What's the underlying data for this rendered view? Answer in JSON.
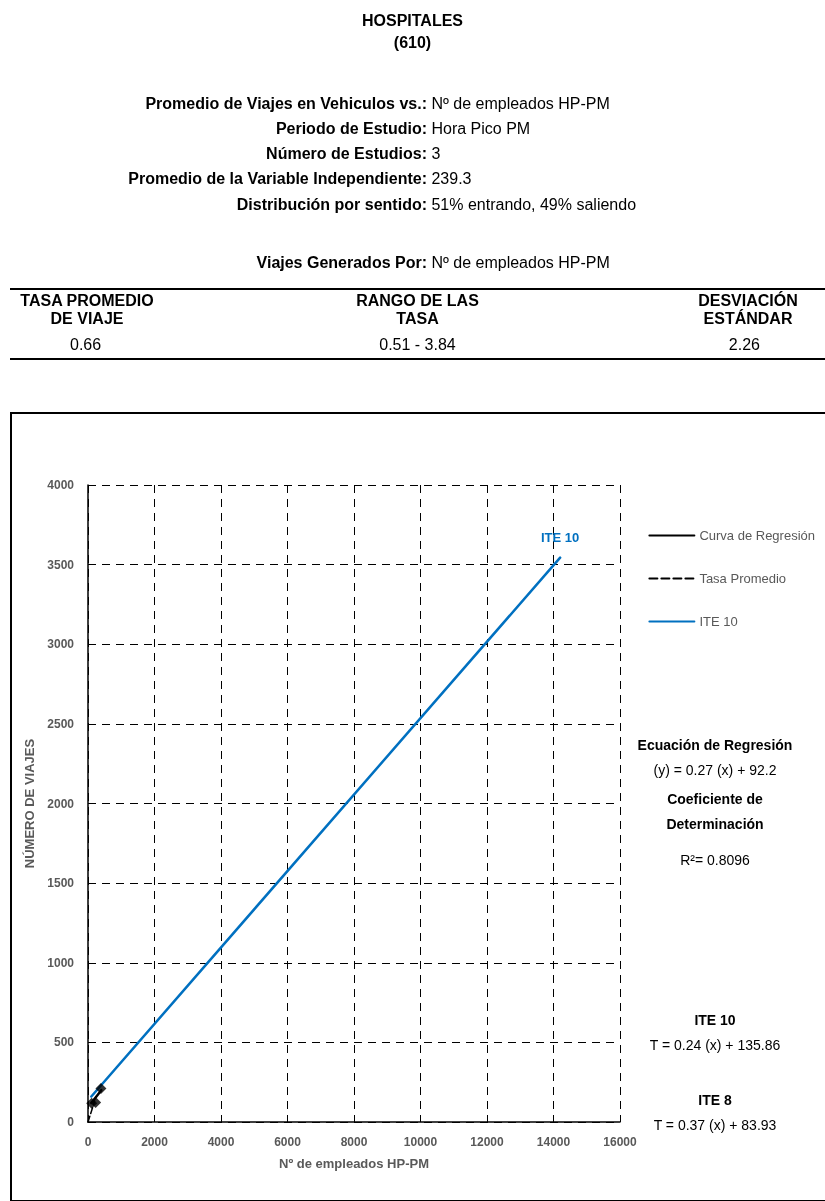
{
  "chart_data": {
    "type": "line",
    "title": "HOSPITALES",
    "subtitle": "(610)",
    "xlabel": "Nº de empleados HP-PM",
    "ylabel": "NÚMERO DE VIAJES",
    "annotations": [
      "Promedio de Viajes en Vehiculos vs.: Nº de empleados HP-PM",
      "Periodo de Estudio: Hora Pico PM",
      "Número de Estudios: 3",
      "Promedio de la Variable Independiente: 239.3",
      "Distribución por sentido: 51% entrando,  49% saliendo",
      "Viajes Generados Por: Nº de empleados HP-PM",
      "TASA PROMEDIO DE VIAJE",
      "RANGO DE LAS TASA",
      "DESVIACIÓN ESTÁNDAR",
      "0.66",
      "0.51 - 3.84",
      "2.26",
      "Ecuación de Regresión",
      "(y) = 0.27 (x) + 92.2",
      "Coeficiente de Determinación",
      "R²= 0.8096",
      "ITE 10",
      "T = 0.24 (x) + 135.86",
      "ITE 8",
      "T = 0.37 (x) + 83.93",
      "ITE 10"
    ],
    "xlim": [
      0,
      16000
    ],
    "xticks": [
      0,
      2000,
      4000,
      6000,
      8000,
      10000,
      12000,
      14000,
      16000
    ],
    "ylim": [
      0,
      4000
    ],
    "yticks": [
      0,
      500,
      1000,
      1500,
      2000,
      2500,
      3000,
      3500,
      4000
    ],
    "grid": true,
    "legend": "top right",
    "marker": "none",
    "series": [
      {
        "name": "Curva de Regresión",
        "color": "#000000",
        "x": [
          100,
          400
        ],
        "values": [
          119,
          200
        ],
        "line_style": "solid"
      },
      {
        "name": "Tasa Promedio",
        "color": "#000000",
        "x": [
          0,
          200
        ],
        "values": [
          0,
          132
        ],
        "line_style": "dashed"
      },
      {
        "name": "ITE 10",
        "color": "#0070c0",
        "x": [
          100,
          14200
        ],
        "values": [
          160,
          3544
        ],
        "line_style": "solid"
      },
      {
        "type": "scatter",
        "color": "#000000",
        "marker": "diamond",
        "x": [
          110,
          230,
          390
        ],
        "values": [
          118,
          122,
          210
        ]
      }
    ]
  }
}
